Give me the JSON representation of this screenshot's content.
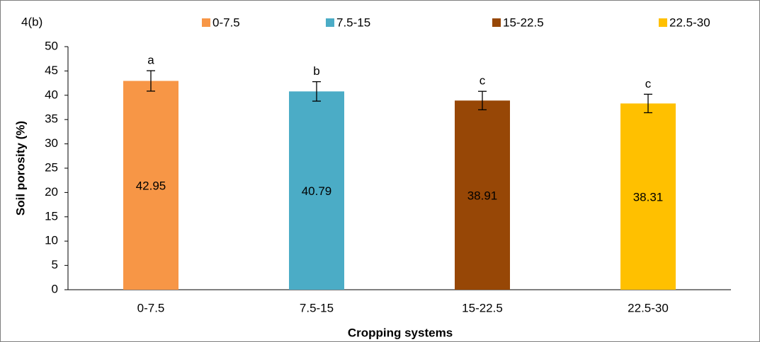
{
  "chart_data": {
    "type": "bar",
    "title": "4(b)",
    "x_label": "Cropping systems",
    "y_label": "Soil porosity (%)",
    "categories": [
      "0-7.5",
      "7.5-15",
      "15-22.5",
      "22.5-30"
    ],
    "values": [
      42.95,
      40.79,
      38.91,
      38.31
    ],
    "errors": [
      2.1,
      2.0,
      1.9,
      1.9
    ],
    "letters": [
      "a",
      "b",
      "c",
      "c"
    ],
    "colors": [
      "#f79646",
      "#4bacc6",
      "#974706",
      "#ffc000"
    ],
    "ylim": [
      0,
      50
    ],
    "yticks": [
      0,
      5,
      10,
      15,
      20,
      25,
      30,
      35,
      40,
      45,
      50
    ],
    "grid": false,
    "legend": "top"
  }
}
